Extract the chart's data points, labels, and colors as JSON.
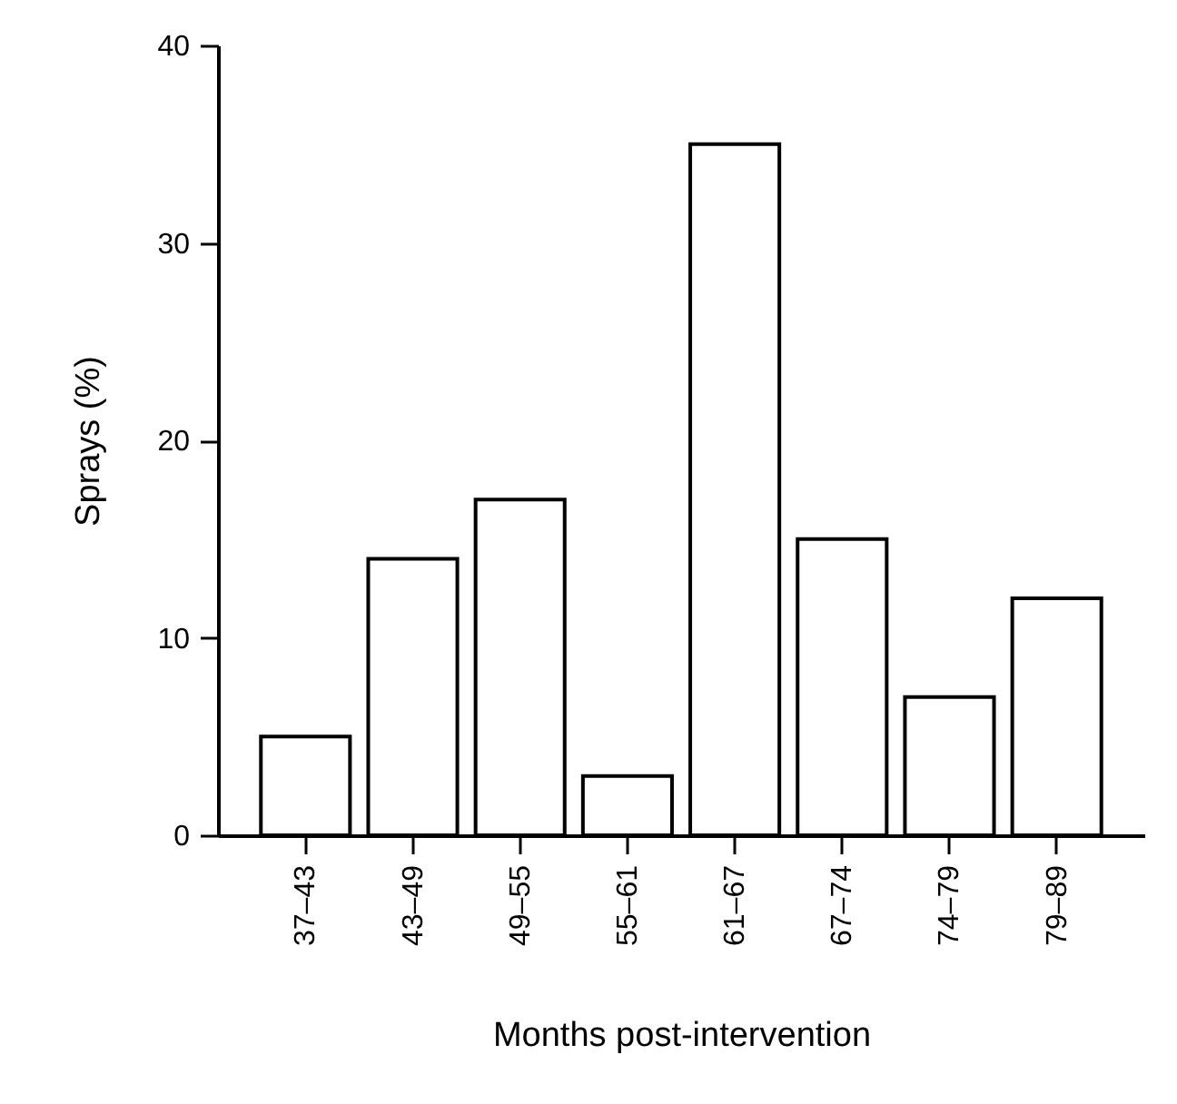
{
  "chart_data": {
    "type": "bar",
    "xlabel": "Months post-intervention",
    "ylabel": "Sprays (%)",
    "categories": [
      "37–43",
      "43–49",
      "49–55",
      "55–61",
      "61–67",
      "67–74",
      "74–79",
      "79–89"
    ],
    "values": [
      5,
      14,
      17,
      3,
      35,
      15,
      7,
      12
    ],
    "color": "#ffffff",
    "ylim": [
      0,
      40
    ],
    "yticks": [
      0,
      10,
      20,
      30,
      40
    ],
    "grid": false
  }
}
